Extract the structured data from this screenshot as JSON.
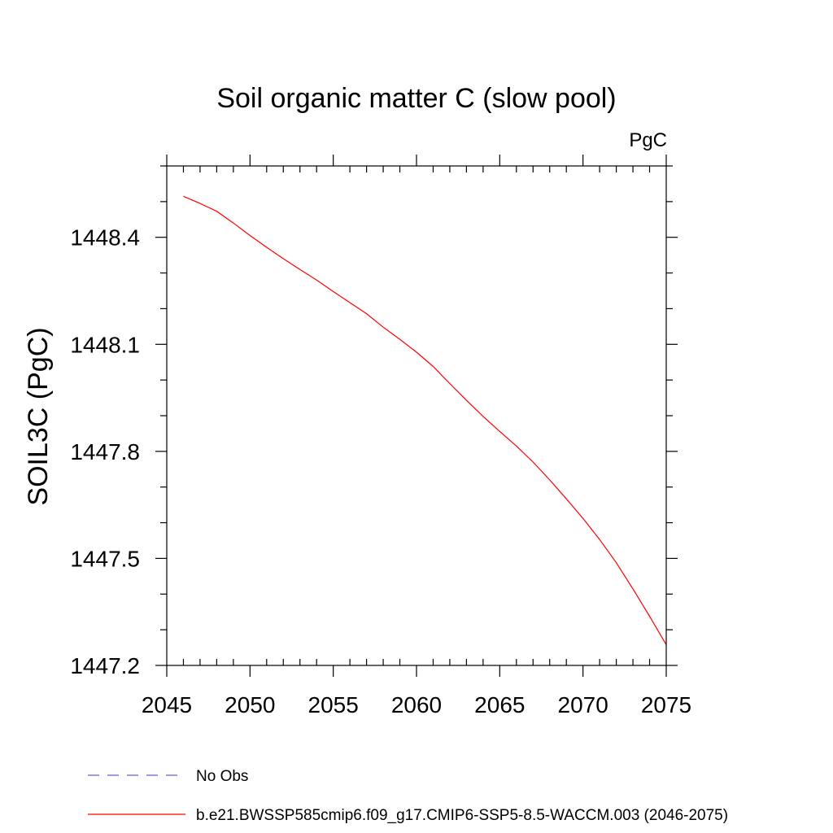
{
  "chart_data": {
    "type": "line",
    "title": "Soil organic matter C (slow pool)",
    "units_label": "PgC",
    "ylabel": "SOIL3C  (PgC)",
    "xlabel": "",
    "xlim": [
      2045,
      2075
    ],
    "ylim": [
      1447.2,
      1448.6
    ],
    "x_ticks": [
      2045,
      2050,
      2055,
      2060,
      2065,
      2070,
      2075
    ],
    "y_ticks": [
      1447.2,
      1447.5,
      1447.8,
      1448.1,
      1448.4
    ],
    "y_tick_labels": [
      "1447.2",
      "1447.5",
      "1447.8",
      "1448.1",
      "1448.4"
    ],
    "x_minor_step": 1,
    "y_minor_step": 0.1,
    "grid": false,
    "legend_position": "bottom-left",
    "series": [
      {
        "name": "No Obs",
        "color": "#6a5acd",
        "dash": "dashed",
        "x": [],
        "y": []
      },
      {
        "name": "b.e21.BWSSP585cmip6.f09_g17.CMIP6-SSP5-8.5-WACCM.003 (2046-2075)",
        "color": "#ff0000",
        "dash": "solid",
        "x": [
          2046,
          2047,
          2048,
          2049,
          2050,
          2051,
          2052,
          2053,
          2054,
          2055,
          2056,
          2057,
          2058,
          2059,
          2060,
          2061,
          2062,
          2063,
          2064,
          2065,
          2066,
          2067,
          2068,
          2069,
          2070,
          2071,
          2072,
          2073,
          2074,
          2075
        ],
        "y": [
          1448.515,
          1448.495,
          1448.473,
          1448.44,
          1448.405,
          1448.372,
          1448.34,
          1448.31,
          1448.28,
          1448.248,
          1448.217,
          1448.186,
          1448.148,
          1448.114,
          1448.078,
          1448.038,
          1447.99,
          1447.943,
          1447.898,
          1447.856,
          1447.815,
          1447.77,
          1447.72,
          1447.667,
          1447.612,
          1447.553,
          1447.488,
          1447.414,
          1447.338,
          1447.258
        ]
      }
    ]
  }
}
